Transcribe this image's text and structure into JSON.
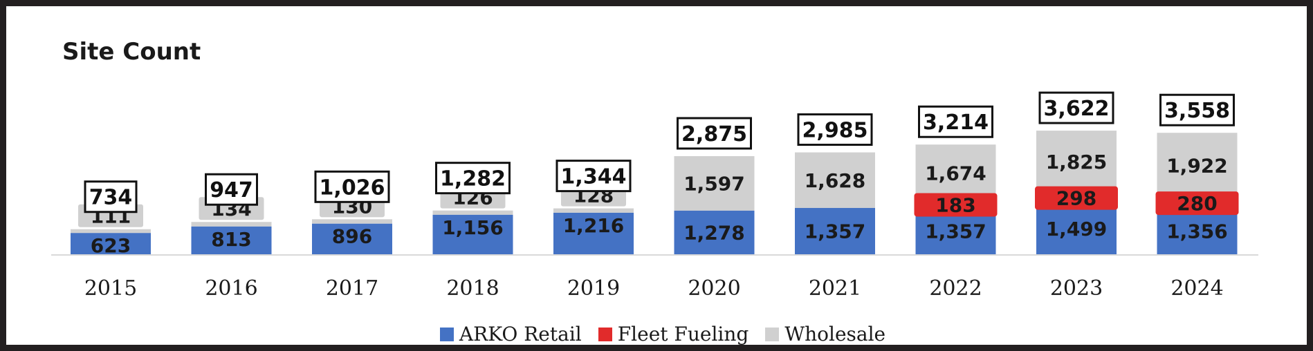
{
  "chart_data": {
    "type": "bar",
    "stacked": true,
    "title": "Site Count",
    "xlabel": "",
    "ylabel": "",
    "categories": [
      "2015",
      "2016",
      "2017",
      "2018",
      "2019",
      "2020",
      "2021",
      "2022",
      "2023",
      "2024"
    ],
    "series": [
      {
        "name": "ARKO Retail",
        "color": "#4472c4",
        "label_color": "#1a1a1a",
        "values": [
          623,
          813,
          896,
          1156,
          1216,
          1278,
          1357,
          1357,
          1499,
          1356
        ],
        "labels": [
          "623",
          "813",
          "896",
          "1,156",
          "1,216",
          "1,278",
          "1,357",
          "1,357",
          "1,499",
          "1,356"
        ]
      },
      {
        "name": "Fleet Fueling",
        "color": "#e12b2b",
        "label_color": "#1a1a1a",
        "values": [
          0,
          0,
          0,
          0,
          0,
          0,
          0,
          183,
          298,
          280
        ],
        "labels": [
          "",
          "",
          "",
          "",
          "",
          "",
          "",
          "183",
          "298",
          "280"
        ]
      },
      {
        "name": "Wholesale",
        "color": "#d0d0d0",
        "label_color": "#1a1a1a",
        "values": [
          111,
          134,
          130,
          126,
          128,
          1597,
          1628,
          1674,
          1825,
          1922
        ],
        "labels": [
          "111",
          "134",
          "130",
          "126",
          "128",
          "1,597",
          "1,628",
          "1,674",
          "1,825",
          "1,922"
        ]
      }
    ],
    "totals": [
      734,
      947,
      1026,
      1282,
      1344,
      2875,
      2985,
      3214,
      3622,
      3558
    ],
    "total_labels": [
      "734",
      "947",
      "1,026",
      "1,282",
      "1,344",
      "2,875",
      "2,985",
      "3,214",
      "3,622",
      "3,558"
    ],
    "ylim": [
      0,
      4000
    ],
    "grid": false,
    "legend_position": "bottom"
  }
}
